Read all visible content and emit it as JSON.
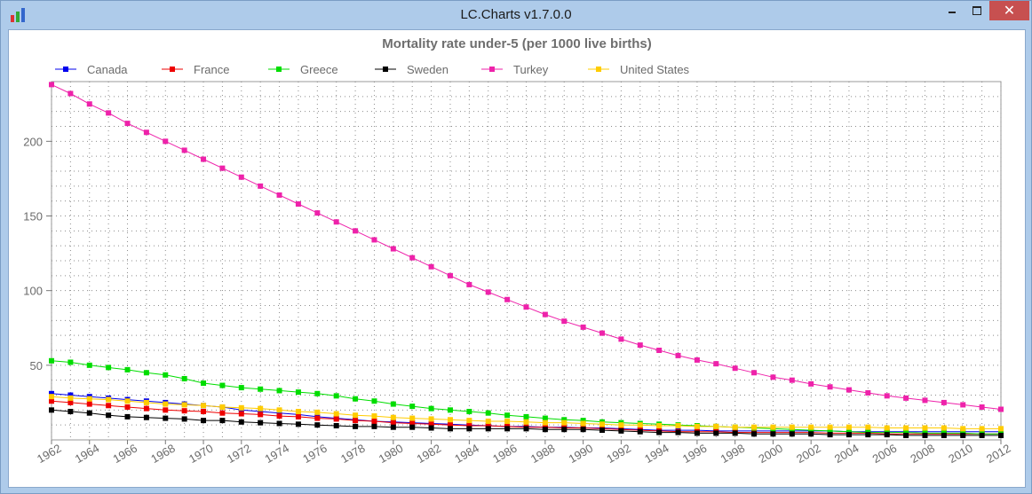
{
  "window": {
    "title": "LC.Charts v1.7.0.0",
    "close_glyph": "✕"
  },
  "chart_data": {
    "type": "line",
    "title": "Mortality rate under-5 (per 1000 live births)",
    "xlabel": "",
    "ylabel": "",
    "x": [
      1962,
      1963,
      1964,
      1965,
      1966,
      1967,
      1968,
      1969,
      1970,
      1971,
      1972,
      1973,
      1974,
      1975,
      1976,
      1977,
      1978,
      1979,
      1980,
      1981,
      1982,
      1983,
      1984,
      1985,
      1986,
      1987,
      1988,
      1989,
      1990,
      1991,
      1992,
      1993,
      1994,
      1995,
      1996,
      1997,
      1998,
      1999,
      2000,
      2001,
      2002,
      2003,
      2004,
      2005,
      2006,
      2007,
      2008,
      2009,
      2010,
      2011,
      2012
    ],
    "xlim": [
      1962,
      2012
    ],
    "ylim": [
      0,
      240
    ],
    "x_ticks": [
      1962,
      1964,
      1966,
      1968,
      1970,
      1972,
      1974,
      1976,
      1978,
      1980,
      1982,
      1984,
      1986,
      1988,
      1990,
      1992,
      1994,
      1996,
      1998,
      2000,
      2002,
      2004,
      2006,
      2008,
      2010,
      2012
    ],
    "y_ticks": [
      50,
      100,
      150,
      200
    ],
    "grid": true,
    "legend_position": "top",
    "series": [
      {
        "name": "Canada",
        "color": "#0000ee",
        "values": [
          31,
          30,
          29,
          28,
          27,
          26,
          25,
          24,
          23,
          22,
          20,
          19,
          18,
          17,
          15.5,
          14.5,
          13.5,
          12.5,
          12,
          11.5,
          11,
          10.5,
          10,
          9.5,
          9,
          9,
          8.5,
          8.5,
          8,
          8,
          7.5,
          7,
          6.5,
          6.5,
          6.5,
          6,
          6,
          6,
          6,
          6,
          6,
          6,
          5.5,
          5.5,
          5.5,
          5.5,
          5.5,
          5.5,
          5.5,
          5.5,
          5.5
        ]
      },
      {
        "name": "France",
        "color": "#ee0000",
        "values": [
          26,
          25,
          24,
          23,
          22,
          21,
          20,
          19.5,
          19,
          18,
          17.5,
          17,
          16,
          15.5,
          14.5,
          14,
          13,
          12.5,
          11.5,
          11,
          10.5,
          10,
          9.5,
          9.5,
          9,
          8.5,
          8.5,
          8,
          8,
          7.5,
          7,
          6.5,
          6,
          5.5,
          5.5,
          5.5,
          5,
          5,
          5,
          5,
          5,
          4.5,
          4.5,
          4.5,
          4,
          4,
          4,
          4,
          4,
          4,
          4
        ]
      },
      {
        "name": "Greece",
        "color": "#00dd00",
        "values": [
          53,
          52,
          50,
          48.5,
          47,
          45,
          43.5,
          41,
          38,
          36.5,
          35,
          34,
          33,
          32,
          31,
          29.5,
          27.5,
          26,
          24,
          22.5,
          21,
          20,
          19,
          18,
          16.5,
          15.5,
          14.5,
          13.5,
          13,
          12,
          11.5,
          11,
          10.5,
          10,
          9.5,
          9,
          8.5,
          8,
          7.5,
          7,
          6.5,
          6,
          5.5,
          5,
          5,
          5,
          4.5,
          4.5,
          4.5,
          4,
          4
        ]
      },
      {
        "name": "Sweden",
        "color": "#000000",
        "values": [
          20,
          19,
          18,
          16.5,
          15.5,
          15,
          14.5,
          14,
          13,
          13,
          12,
          11.5,
          11,
          10.5,
          10,
          9.5,
          9,
          9,
          8.5,
          8.5,
          8,
          7.5,
          7.5,
          7.5,
          7.5,
          7.5,
          7,
          7,
          7,
          6.5,
          6,
          5.5,
          5,
          5,
          4.5,
          4.5,
          4.5,
          4,
          4,
          4,
          4,
          3.5,
          3.5,
          3.5,
          3.5,
          3,
          3,
          3,
          3,
          3,
          3
        ]
      },
      {
        "name": "Turkey",
        "color": "#ee22aa",
        "values": [
          238,
          232,
          225,
          219,
          212,
          206,
          200,
          194,
          188,
          182,
          176,
          170,
          164,
          158,
          152,
          146,
          140,
          134,
          128,
          122,
          116,
          110,
          104,
          99,
          94,
          89,
          84,
          79.5,
          75.5,
          71.5,
          67.5,
          63.5,
          60,
          56.5,
          53.5,
          51,
          48,
          45,
          42,
          40,
          37.5,
          35.5,
          33.5,
          31.5,
          29.5,
          28,
          26.5,
          25,
          23.5,
          22,
          20.5
        ]
      },
      {
        "name": "United States",
        "color": "#ffcc00",
        "values": [
          29,
          28,
          27.5,
          27,
          26,
          25,
          24,
          23.5,
          23,
          22,
          21.5,
          21,
          20,
          19,
          18.5,
          17.5,
          16.5,
          16,
          15,
          14.5,
          14,
          13.5,
          13,
          12.5,
          12.5,
          12,
          11.5,
          11.5,
          11,
          10.5,
          10,
          10,
          9.5,
          9.5,
          9,
          9,
          8.5,
          8.5,
          8.5,
          8.5,
          8.5,
          8.5,
          8.5,
          8.5,
          8,
          8,
          8,
          8,
          7.5,
          7.5,
          7.5
        ]
      }
    ]
  }
}
